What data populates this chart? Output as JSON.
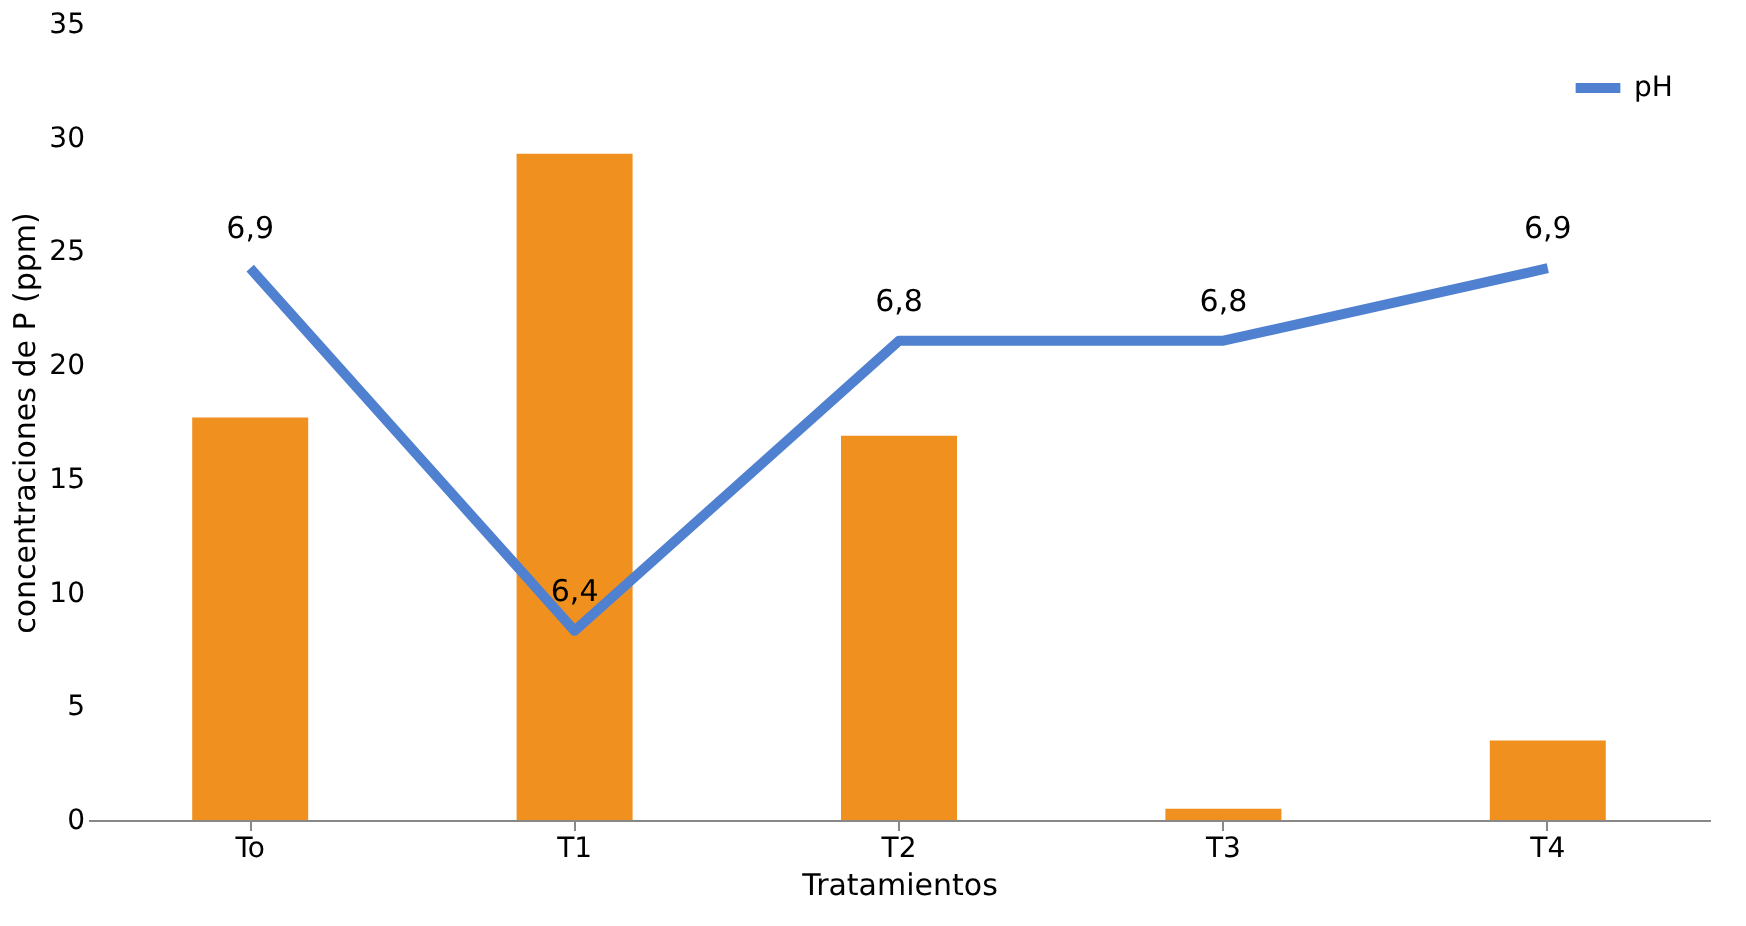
{
  "chart_data": {
    "type": "bar",
    "xlabel": "Tratamientos",
    "ylabel": "concentraciones de P (ppm)",
    "categories": [
      "To",
      "T1",
      "T2",
      "T3",
      "T4"
    ],
    "ylim": [
      0,
      35
    ],
    "yticks": [
      0,
      5,
      10,
      15,
      20,
      25,
      30,
      35
    ],
    "series": [
      {
        "color": "#f0901e",
        "values": [
          17.7,
          29.3,
          16.9,
          0.5,
          3.5
        ]
      },
      {
        "type": "line",
        "name": "pH",
        "color": "#4f81d0",
        "axis": "y2",
        "values": [
          6.9,
          6.4,
          6.8,
          6.8,
          6.9
        ],
        "value_labels": [
          "6,9",
          "6,4",
          "6,8",
          "6,8",
          "6,9"
        ]
      }
    ],
    "legend": "top right",
    "grid": false
  }
}
